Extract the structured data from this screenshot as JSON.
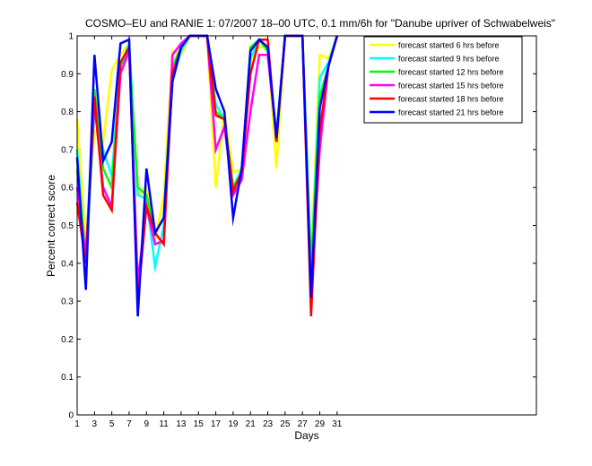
{
  "chart_data": {
    "type": "line",
    "title": "COSMO–EU and RANIE 1: 07/2007 18–00 UTC, 0.1 mm/6h for \"Danube upriver of Schwabelweis\"",
    "xlabel": "Days",
    "ylabel": "Percent correct score",
    "xlim": [
      1,
      54
    ],
    "ylim": [
      0,
      1
    ],
    "xticks": [
      1,
      3,
      5,
      7,
      9,
      11,
      13,
      15,
      17,
      19,
      21,
      23,
      25,
      27,
      29,
      31
    ],
    "yticks": [
      0,
      0.1,
      0.2,
      0.3,
      0.4,
      0.5,
      0.6,
      0.7,
      0.8,
      0.9,
      1
    ],
    "ytick_labels": [
      "0",
      "0.1",
      "0.2",
      "0.3",
      "0.4",
      "0.5",
      "0.6",
      "0.7",
      "0.8",
      "0.9",
      "1"
    ],
    "grid": false,
    "legend_position": "top-right",
    "x": [
      1,
      2,
      3,
      4,
      5,
      6,
      7,
      8,
      9,
      10,
      11,
      12,
      13,
      14,
      15,
      16,
      17,
      18,
      19,
      20,
      21,
      22,
      23,
      24,
      25,
      26,
      27,
      28,
      29,
      30,
      31
    ],
    "series": [
      {
        "name": "forecast started 6 hrs before",
        "color": "#ffff00",
        "values": [
          0.78,
          0.45,
          0.75,
          0.72,
          0.91,
          0.95,
          0.98,
          0.58,
          0.6,
          0.46,
          0.58,
          0.96,
          0.95,
          1.0,
          1.0,
          1.0,
          0.6,
          0.8,
          0.64,
          0.65,
          0.93,
          0.97,
          0.97,
          0.65,
          1.0,
          1.0,
          1.0,
          0.4,
          0.95,
          0.94,
          1.0
        ]
      },
      {
        "name": "forecast started 9 hrs before",
        "color": "#00ffff",
        "values": [
          0.7,
          0.4,
          0.8,
          0.7,
          0.63,
          0.92,
          0.98,
          0.58,
          0.57,
          0.39,
          0.5,
          0.88,
          0.96,
          1.0,
          1.0,
          1.0,
          0.82,
          0.78,
          0.6,
          0.65,
          0.94,
          0.99,
          0.96,
          0.74,
          1.0,
          1.0,
          1.0,
          0.38,
          0.89,
          0.93,
          1.0
        ]
      },
      {
        "name": "forecast started 12 hrs before",
        "color": "#00ff00",
        "values": [
          0.65,
          0.42,
          0.86,
          0.65,
          0.6,
          0.92,
          0.96,
          0.6,
          0.58,
          0.48,
          0.52,
          0.92,
          0.97,
          1.0,
          1.0,
          1.0,
          0.8,
          0.78,
          0.6,
          0.64,
          0.97,
          0.99,
          0.96,
          0.74,
          1.0,
          1.0,
          1.0,
          0.38,
          0.84,
          0.92,
          1.0
        ]
      },
      {
        "name": "forecast started 15 hrs before",
        "color": "#ff00ff",
        "values": [
          0.6,
          0.42,
          0.82,
          0.6,
          0.55,
          0.9,
          0.96,
          0.35,
          0.55,
          0.45,
          0.46,
          0.95,
          0.98,
          1.0,
          1.0,
          1.0,
          0.7,
          0.76,
          0.58,
          0.62,
          0.8,
          0.95,
          0.95,
          0.73,
          1.0,
          1.0,
          1.0,
          0.32,
          0.7,
          0.92,
          1.0
        ]
      },
      {
        "name": "forecast started 18 hrs before",
        "color": "#ff0000",
        "values": [
          0.56,
          0.4,
          0.84,
          0.58,
          0.54,
          0.93,
          0.97,
          0.3,
          0.55,
          0.48,
          0.45,
          0.9,
          0.97,
          1.0,
          1.0,
          1.0,
          0.79,
          0.78,
          0.59,
          0.64,
          0.9,
          0.99,
          0.99,
          0.72,
          1.0,
          1.0,
          1.0,
          0.26,
          0.75,
          0.92,
          1.0
        ]
      },
      {
        "name": "forecast started 21 hrs before",
        "color": "#0000ff",
        "values": [
          0.68,
          0.33,
          0.95,
          0.67,
          0.72,
          0.98,
          0.99,
          0.26,
          0.65,
          0.48,
          0.52,
          0.88,
          0.97,
          1.0,
          1.0,
          1.0,
          0.86,
          0.8,
          0.52,
          0.65,
          0.96,
          0.99,
          0.97,
          0.73,
          1.0,
          1.0,
          1.0,
          0.31,
          0.81,
          0.92,
          1.0
        ]
      }
    ]
  }
}
